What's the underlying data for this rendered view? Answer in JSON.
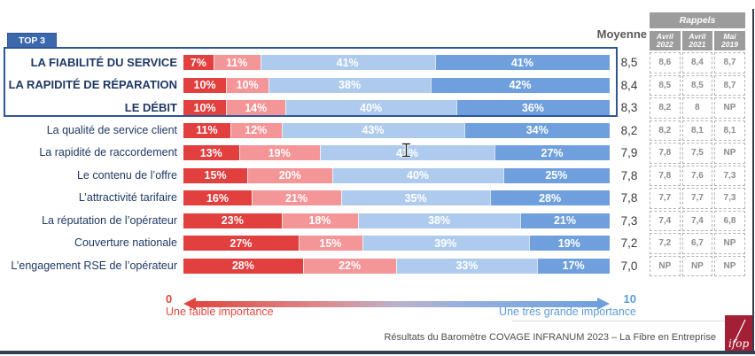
{
  "top3_label": "TOP 3",
  "moyenne_header": "Moyenne",
  "legend": {
    "min_value": "0",
    "min_label": "Une faible importance",
    "max_value": "10",
    "max_label": "Une très grande importance"
  },
  "footer": {
    "text": "Résultats du Baromètre COVAGE INFRANUM 2023 – La Fibre en Entreprise",
    "logo_text": "ifop"
  },
  "colors": {
    "top3_blue": "#3C68AE",
    "box_border_blue": "#2F5597",
    "label_navy": "#1F3864",
    "table_gray": "#9C9C9C",
    "ifop_red": "#A31F36",
    "edge_dark": "#333F50"
  },
  "chart_data": {
    "type": "bar",
    "orientation": "horizontal",
    "stacked": true,
    "unit": "%",
    "top3_count": 3,
    "categories": [
      "LA FIABILITÉ DU SERVICE",
      "LA RAPIDITÉ DE RÉPARATION",
      "LE DÉBIT",
      "La qualité de service client",
      "La rapidité de raccordement",
      "Le contenu de l’offre",
      "L’attractivité tarifaire",
      "La réputation de l’opérateur",
      "Couverture nationale",
      "L’engagement RSE de l’opérateur"
    ],
    "series": [
      {
        "name": "importance-tres-faible",
        "color": "#E23F3F",
        "values": [
          7,
          10,
          10,
          11,
          13,
          15,
          16,
          23,
          27,
          28
        ]
      },
      {
        "name": "importance-faible",
        "color": "#F49597",
        "values": [
          11,
          10,
          14,
          12,
          19,
          20,
          21,
          18,
          15,
          22
        ]
      },
      {
        "name": "importance-grande",
        "color": "#AECBEE",
        "values": [
          41,
          38,
          40,
          43,
          41,
          40,
          35,
          38,
          39,
          33
        ]
      },
      {
        "name": "importance-tres-grande",
        "color": "#6FA0DD",
        "values": [
          41,
          42,
          36,
          34,
          27,
          25,
          28,
          21,
          19,
          17
        ]
      }
    ],
    "moyenne_label": "Moyenne",
    "moyenne": [
      "8,5",
      "8,4",
      "8,3",
      "8,2",
      "7,9",
      "7,8",
      "7,8",
      "7,3",
      "7,2",
      "7,0"
    ],
    "rappels": {
      "title": "Rappels",
      "columns": [
        "Avril 2022",
        "Avril 2021",
        "Mai 2019"
      ],
      "values": [
        [
          "8,6",
          "8,4",
          "8,7"
        ],
        [
          "8,5",
          "8,5",
          "8,7"
        ],
        [
          "8,2",
          "8",
          "NP"
        ],
        [
          "8,2",
          "8,1",
          "8,1"
        ],
        [
          "7,8",
          "7,5",
          "NP"
        ],
        [
          "7,8",
          "7,6",
          "7,3"
        ],
        [
          "7,7",
          "7,7",
          "7,3"
        ],
        [
          "7,4",
          "7,4",
          "6,8"
        ],
        [
          "7,2",
          "6,7",
          "NP"
        ],
        [
          "NP",
          "NP",
          "NP"
        ]
      ]
    },
    "scale": {
      "min": 0,
      "max": 10,
      "min_desc": "Une faible importance",
      "max_desc": "Une très grande importance"
    }
  }
}
